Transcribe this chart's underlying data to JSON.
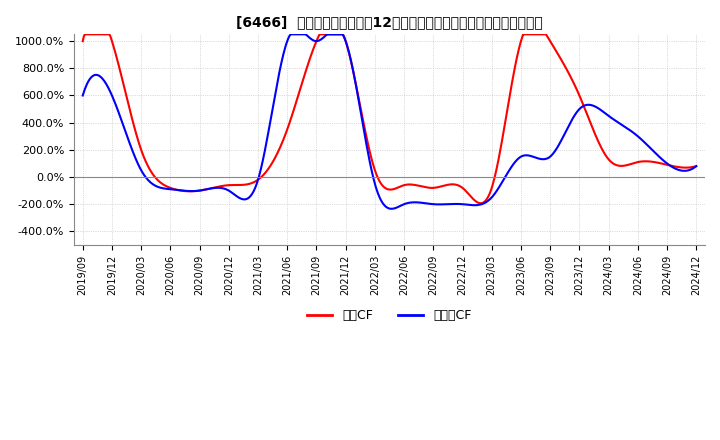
{
  "title": "[6466]  キャッシュフローの12か月移動合計の対前年同期増減率の推移",
  "ylim": [
    -500,
    1050
  ],
  "yticks": [
    -400,
    -200,
    0,
    200,
    400,
    600,
    800,
    1000
  ],
  "operating_cf_color": "#ff0000",
  "free_cf_color": "#0000ff",
  "background_color": "#ffffff",
  "grid_color": "#bbbbbb",
  "legend_labels": [
    "営業CF",
    "フリーCF"
  ],
  "x_labels": [
    "2019/09",
    "2019/12",
    "2020/03",
    "2020/06",
    "2020/09",
    "2020/12",
    "2021/03",
    "2021/06",
    "2021/09",
    "2021/12",
    "2022/03",
    "2022/06",
    "2022/09",
    "2022/12",
    "2023/03",
    "2023/06",
    "2023/09",
    "2023/12",
    "2024/03",
    "2024/06",
    "2024/09",
    "2024/12"
  ],
  "operating_cf": [
    1000,
    1000,
    200,
    -80,
    -100,
    -60,
    -20,
    350,
    1000,
    1000,
    50,
    -60,
    -80,
    -80,
    -80,
    1000,
    1000,
    600,
    130,
    110,
    90,
    80
  ],
  "free_cf": [
    600,
    600,
    50,
    -90,
    -100,
    -100,
    -20,
    1000,
    1000,
    1000,
    -50,
    -200,
    -200,
    -200,
    -150,
    150,
    150,
    500,
    450,
    300,
    100,
    80
  ]
}
